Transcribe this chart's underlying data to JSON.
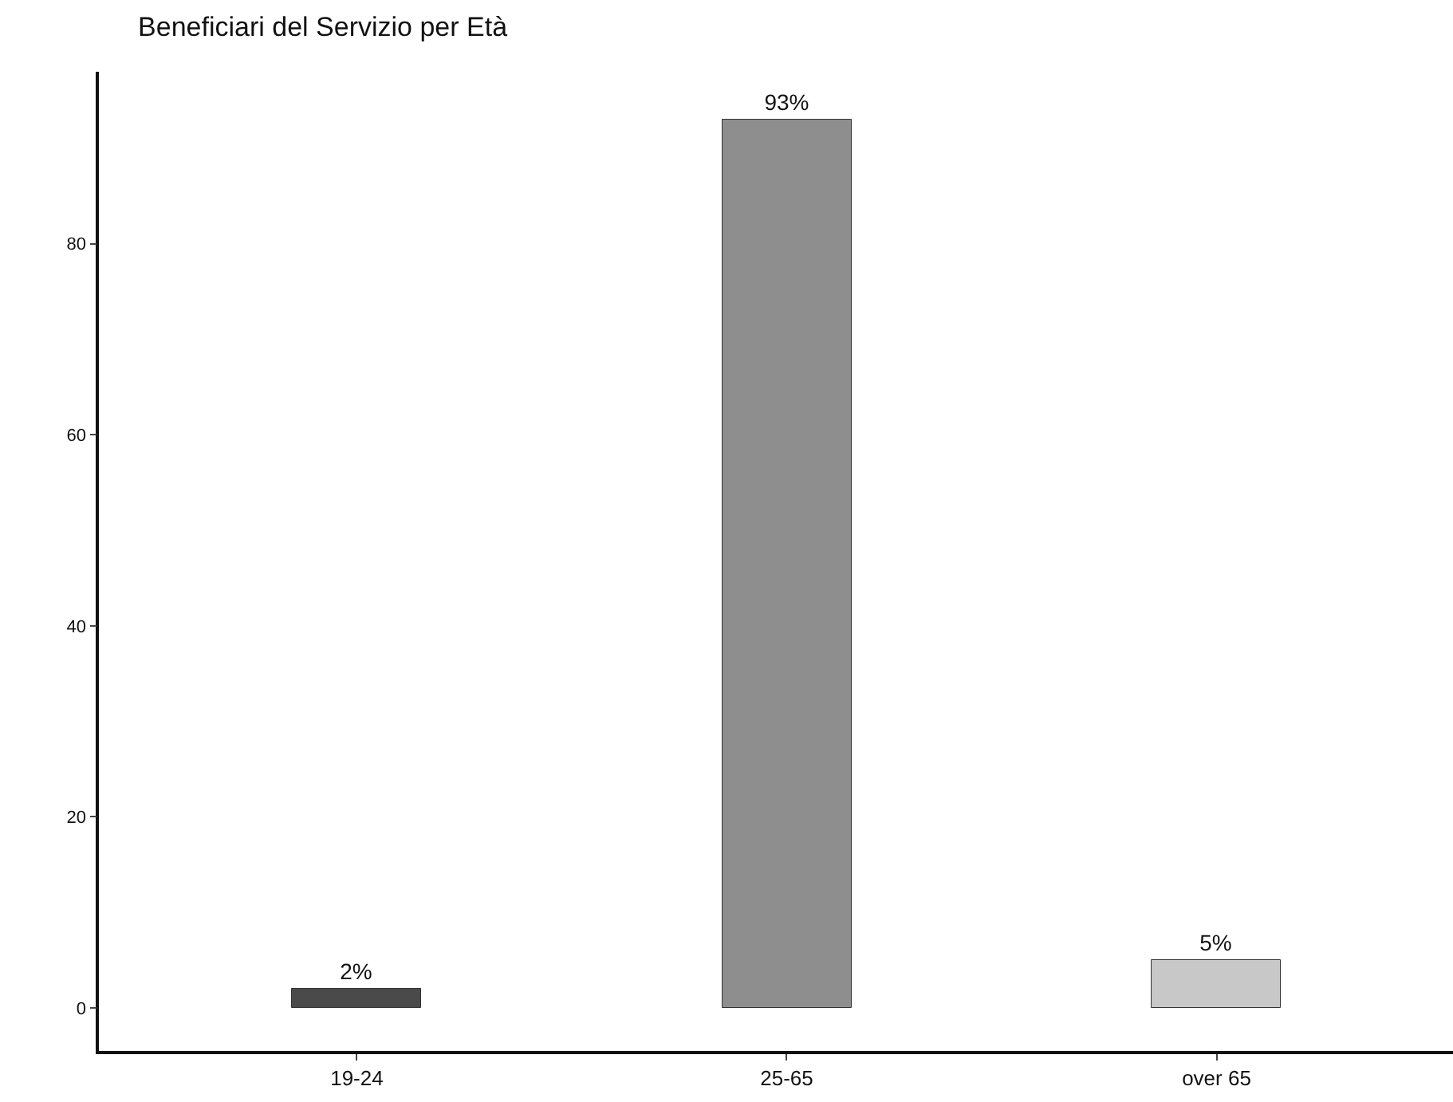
{
  "chart_data": {
    "type": "bar",
    "title": "Beneficiari del Servizio per Età",
    "categories": [
      "19-24",
      "25-65",
      "over 65"
    ],
    "values": [
      2,
      93,
      5
    ],
    "colors": [
      "#4a4a4a",
      "#8e8e8e",
      "#c8c8c8"
    ],
    "value_labels": [
      "2%",
      "93%",
      "5%"
    ],
    "ylim": [
      -4.5,
      98
    ],
    "yticks": [
      0,
      20,
      40,
      60,
      80
    ],
    "grid": false,
    "legend": false
  }
}
